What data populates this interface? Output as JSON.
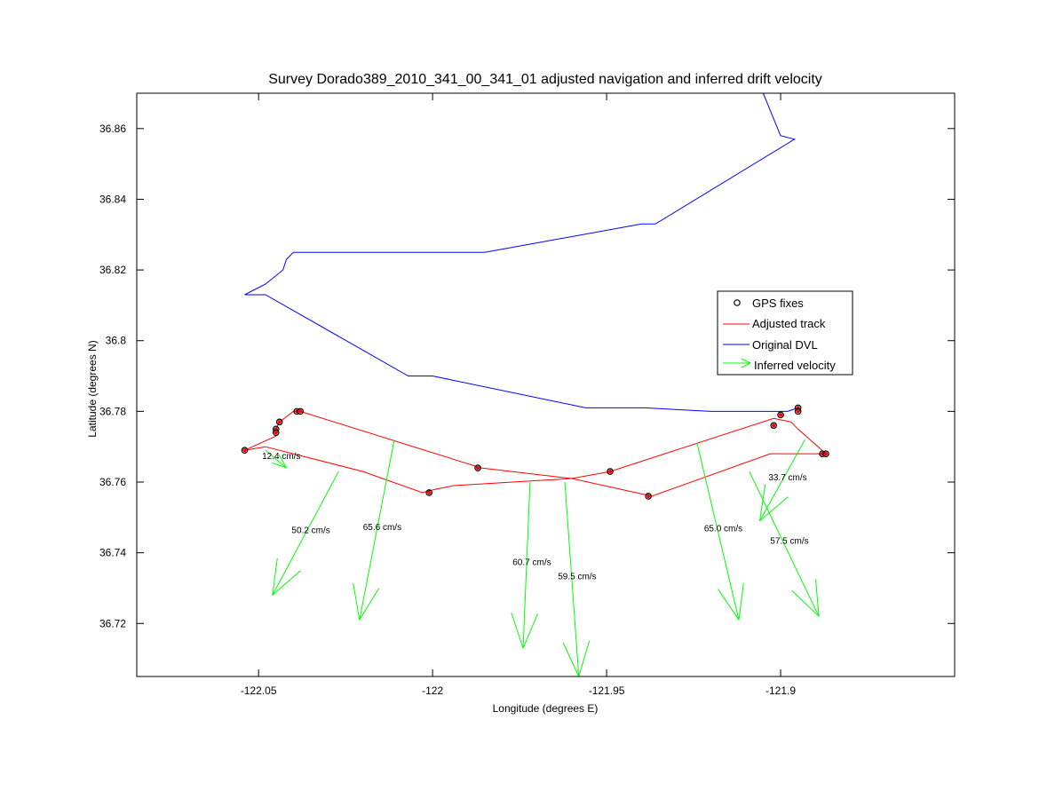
{
  "chart_data": {
    "type": "line",
    "title": "Survey Dorado389_2010_341_00_341_01 adjusted navigation and inferred drift velocity",
    "xlabel": "Longitude (degrees E)",
    "ylabel": "Latitude (degrees N)",
    "xlim": [
      -122.085,
      -121.85
    ],
    "ylim": [
      36.705,
      36.87
    ],
    "xticks": [
      -122.05,
      -122.0,
      -121.95,
      -121.9
    ],
    "xtick_labels": [
      "-122.05",
      "-122",
      "-121.95",
      "-121.9"
    ],
    "yticks": [
      36.72,
      36.74,
      36.76,
      36.78,
      36.8,
      36.82,
      36.84,
      36.86
    ],
    "ytick_labels": [
      "36.72",
      "36.74",
      "36.76",
      "36.78",
      "36.8",
      "36.82",
      "36.84",
      "36.86"
    ],
    "grid": false,
    "legend_position": "right",
    "legend": [
      {
        "label": "GPS fixes",
        "marker": "circle",
        "color": "#000000"
      },
      {
        "label": "Adjusted track",
        "marker": "line",
        "color": "#ff0000"
      },
      {
        "label": "Original DVL",
        "marker": "line",
        "color": "#0000ff"
      },
      {
        "label": "Inferred velocity",
        "marker": "arrow",
        "color": "#00ff00"
      }
    ],
    "series": [
      {
        "name": "Original DVL",
        "color": "#0000ff",
        "points": [
          [
            -121.905,
            36.87
          ],
          [
            -121.9,
            36.858
          ],
          [
            -121.896,
            36.857
          ],
          [
            -121.936,
            36.833
          ],
          [
            -121.94,
            36.833
          ],
          [
            -121.985,
            36.825
          ],
          [
            -122.04,
            36.825
          ],
          [
            -122.042,
            36.823
          ],
          [
            -122.043,
            36.82
          ],
          [
            -122.048,
            36.816
          ],
          [
            -122.054,
            36.813
          ],
          [
            -122.048,
            36.813
          ],
          [
            -122.007,
            36.79
          ],
          [
            -122.0,
            36.79
          ],
          [
            -121.956,
            36.781
          ],
          [
            -121.939,
            36.781
          ],
          [
            -121.92,
            36.78
          ],
          [
            -121.905,
            36.78
          ],
          [
            -121.898,
            36.78
          ],
          [
            -121.895,
            36.781
          ]
        ]
      },
      {
        "name": "Adjusted track",
        "color": "#ff0000",
        "points": [
          [
            -122.054,
            36.769
          ],
          [
            -122.048,
            36.77
          ],
          [
            -122.02,
            36.763
          ],
          [
            -122.003,
            36.757
          ],
          [
            -121.999,
            36.758
          ],
          [
            -121.994,
            36.759
          ],
          [
            -121.96,
            36.761
          ],
          [
            -121.937,
            36.756
          ],
          [
            -121.903,
            36.768
          ],
          [
            -121.887,
            36.768
          ],
          [
            -121.895,
            36.775
          ],
          [
            -121.897,
            36.777
          ],
          [
            -121.902,
            36.778
          ],
          [
            -121.949,
            36.763
          ],
          [
            -121.96,
            36.761
          ],
          [
            -121.986,
            36.764
          ],
          [
            -122.038,
            36.78
          ],
          [
            -122.04,
            36.78
          ],
          [
            -122.044,
            36.777
          ],
          [
            -122.045,
            36.775
          ],
          [
            -122.045,
            36.773
          ],
          [
            -122.054,
            36.769
          ]
        ]
      }
    ],
    "gps_fixes": [
      [
        -122.054,
        36.769
      ],
      [
        -122.045,
        36.775
      ],
      [
        -122.045,
        36.774
      ],
      [
        -122.044,
        36.777
      ],
      [
        -122.039,
        36.78
      ],
      [
        -122.038,
        36.78
      ],
      [
        -122.001,
        36.757
      ],
      [
        -121.987,
        36.764
      ],
      [
        -121.949,
        36.763
      ],
      [
        -121.938,
        36.756
      ],
      [
        -121.902,
        36.776
      ],
      [
        -121.9,
        36.779
      ],
      [
        -121.895,
        36.781
      ],
      [
        -121.895,
        36.78
      ],
      [
        -121.888,
        36.768
      ],
      [
        -121.887,
        36.768
      ]
    ],
    "velocity_vectors": [
      {
        "label": "12.4 cm/s",
        "start": [
          -122.048,
          36.769
        ],
        "end": [
          -122.042,
          36.764
        ]
      },
      {
        "label": "50.2 cm/s",
        "start": [
          -122.027,
          36.763
        ],
        "end": [
          -122.046,
          36.728
        ]
      },
      {
        "label": "65.6 cm/s",
        "start": [
          -122.011,
          36.772
        ],
        "end": [
          -122.021,
          36.721
        ]
      },
      {
        "label": "60.7 cm/s",
        "start": [
          -121.972,
          36.76
        ],
        "end": [
          -121.974,
          36.713
        ]
      },
      {
        "label": "59.5 cm/s",
        "start": [
          -121.962,
          36.76
        ],
        "end": [
          -121.958,
          36.705
        ]
      },
      {
        "label": "65.0 cm/s",
        "start": [
          -121.924,
          36.771
        ],
        "end": [
          -121.912,
          36.721
        ]
      },
      {
        "label": "57.5 cm/s",
        "start": [
          -121.909,
          36.763
        ],
        "end": [
          -121.889,
          36.722
        ]
      },
      {
        "label": "33.7 cm/s",
        "start": [
          -121.893,
          36.772
        ],
        "end": [
          -121.906,
          36.749
        ]
      }
    ]
  }
}
